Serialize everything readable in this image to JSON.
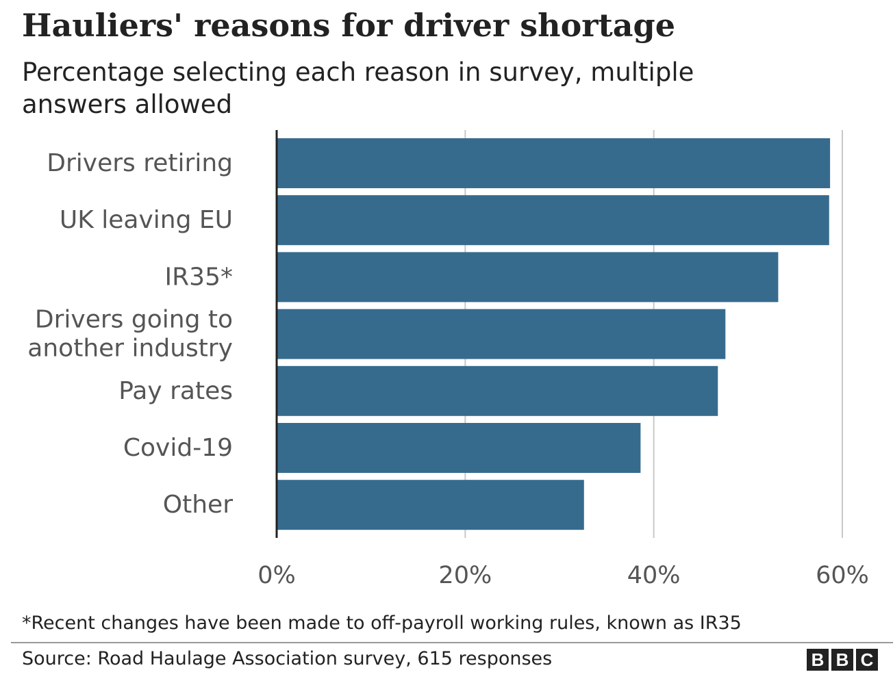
{
  "header": {
    "title": "Hauliers' reasons for driver shortage",
    "subtitle": "Percentage selecting each reason in survey, multiple answers allowed"
  },
  "footer": {
    "footnote": "*Recent changes have been made to off-payroll working rules, known as IR35",
    "source": "Source: Road Haulage Association survey, 615 responses",
    "logo_letters": [
      "B",
      "B",
      "C"
    ]
  },
  "colors": {
    "bar": "#366b8e",
    "grid": "#c8c8c8",
    "axis": "#222222",
    "label_text": "#555555",
    "tick_text": "#555555"
  },
  "chart_data": {
    "type": "bar",
    "orientation": "horizontal",
    "title": "Hauliers' reasons for driver shortage",
    "subtitle": "Percentage selecting each reason in survey, multiple answers allowed",
    "categories": [
      [
        "Drivers retiring"
      ],
      [
        "UK leaving EU"
      ],
      [
        "IR35*"
      ],
      [
        "Drivers going to",
        "another industry"
      ],
      [
        "Pay rates"
      ],
      [
        "Covid-19"
      ],
      [
        "Other"
      ]
    ],
    "values": [
      58.7,
      58.6,
      53.2,
      47.6,
      46.8,
      38.6,
      32.6
    ],
    "xlim": [
      0,
      60
    ],
    "xticks": [
      0,
      20,
      40,
      60
    ],
    "tick_labels": [
      "0%",
      "20%",
      "40%",
      "60%"
    ],
    "grid": true,
    "legend": "none"
  }
}
